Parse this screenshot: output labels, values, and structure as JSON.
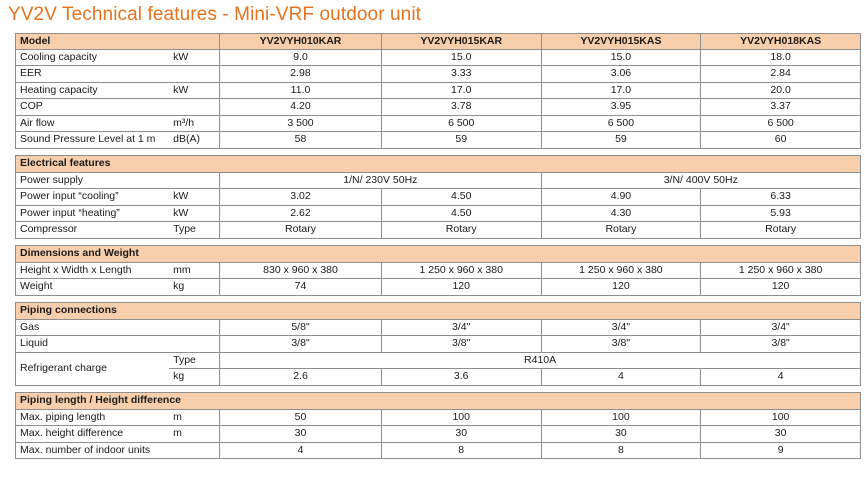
{
  "title": "YV2V Technical features - Mini-VRF outdoor unit",
  "header": {
    "label": "Model",
    "models": [
      "YV2VYH010KAR",
      "YV2VYH015KAR",
      "YV2VYH015KAS",
      "YV2VYH018KAS"
    ]
  },
  "general_rows": [
    {
      "label": "Cooling capacity",
      "unit": "kW",
      "values": [
        "9.0",
        "15.0",
        "15.0",
        "18.0"
      ]
    },
    {
      "label": "EER",
      "unit": "",
      "values": [
        "2.98",
        "3.33",
        "3.06",
        "2.84"
      ]
    },
    {
      "label": "Heating capacity",
      "unit": "kW",
      "values": [
        "11.0",
        "17.0",
        "17.0",
        "20.0"
      ]
    },
    {
      "label": "COP",
      "unit": "",
      "values": [
        "4.20",
        "3.78",
        "3.95",
        "3.37"
      ]
    },
    {
      "label": "Air flow",
      "unit": "m³/h",
      "values": [
        "3 500",
        "6 500",
        "6 500",
        "6 500"
      ]
    },
    {
      "label": "Sound Pressure Level at 1 m",
      "unit": "dB(A)",
      "values": [
        "58",
        "59",
        "59",
        "60"
      ]
    }
  ],
  "electrical": {
    "section_title": "Electrical features",
    "power_supply": {
      "label": "Power supply",
      "value_a": "1/N/ 230V 50Hz",
      "value_b": "3/N/ 400V 50Hz"
    },
    "rows": [
      {
        "label": "Power input  “cooling”",
        "unit": "kW",
        "values": [
          "3.02",
          "4.50",
          "4.90",
          "6.33"
        ]
      },
      {
        "label": "Power input  “heating”",
        "unit": "kW",
        "values": [
          "2.62",
          "4.50",
          "4.30",
          "5.93"
        ]
      },
      {
        "label": "Compressor",
        "unit": "Type",
        "values": [
          "Rotary",
          "Rotary",
          "Rotary",
          "Rotary"
        ]
      }
    ]
  },
  "dimensions": {
    "section_title": "Dimensions and Weight",
    "rows": [
      {
        "label": "Height x Width x Length",
        "unit": "mm",
        "values": [
          "830 x 960 x 380",
          "1 250 x 960 x 380",
          "1 250 x 960 x 380",
          "1 250 x 960 x 380"
        ]
      },
      {
        "label": "Weight",
        "unit": "kg",
        "values": [
          "74",
          "120",
          "120",
          "120"
        ]
      }
    ]
  },
  "piping": {
    "section_title": "Piping connections",
    "rows": [
      {
        "label": "Gas",
        "unit": "",
        "values": [
          "5/8\"",
          "3/4\"",
          "3/4\"",
          "3/4\""
        ]
      },
      {
        "label": "Liquid",
        "unit": "",
        "values": [
          "3/8\"",
          "3/8\"",
          "3/8\"",
          "3/8\""
        ]
      }
    ],
    "refrigerant": {
      "label": "Refrigerant charge",
      "type_unit": "Type",
      "type_value": "R410A",
      "kg_unit": "kg",
      "kg_values": [
        "2.6",
        "3.6",
        "4",
        "4"
      ]
    }
  },
  "piping_length": {
    "section_title": "Piping length / Height difference",
    "rows": [
      {
        "label": "Max. piping length",
        "unit": "m",
        "values": [
          "50",
          "100",
          "100",
          "100"
        ]
      },
      {
        "label": "Max. height difference",
        "unit": "m",
        "values": [
          "30",
          "30",
          "30",
          "30"
        ]
      },
      {
        "label": "Max. number of indoor units",
        "unit": "",
        "values": [
          "4",
          "8",
          "8",
          "9"
        ]
      }
    ]
  }
}
